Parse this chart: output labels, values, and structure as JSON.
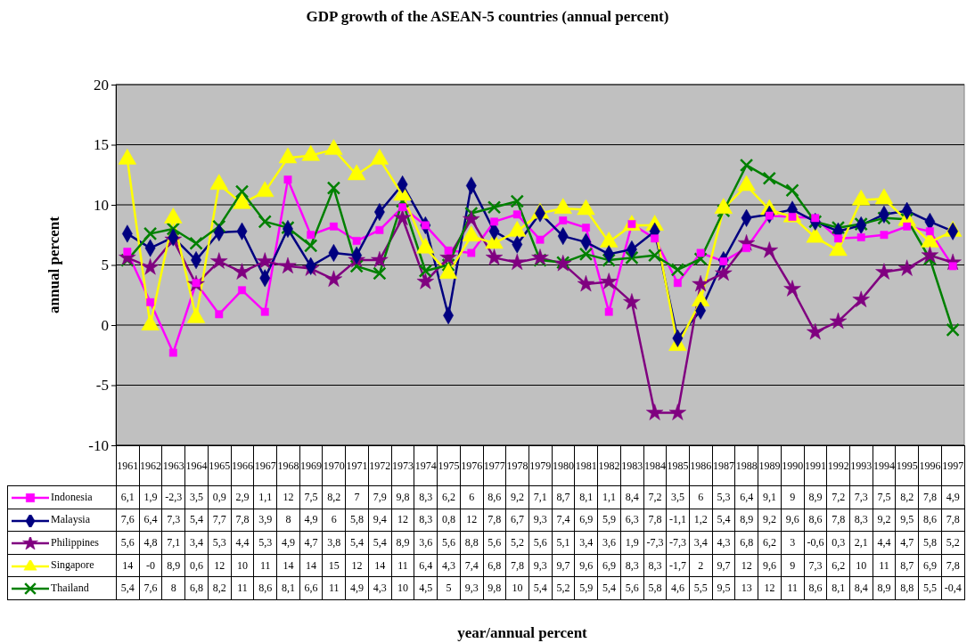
{
  "chart_data": {
    "type": "line",
    "title": "GDP growth of the ASEAN-5 countries (annual percent)",
    "annotations": [
      "year/annual percent"
    ],
    "ylabel": "annual percent",
    "categories": [
      "1961",
      "1962",
      "1963",
      "1964",
      "1965",
      "1966",
      "1967",
      "1968",
      "1969",
      "1970",
      "1971",
      "1972",
      "1973",
      "1974",
      "1975",
      "1976",
      "1977",
      "1978",
      "1979",
      "1980",
      "1981",
      "1982",
      "1983",
      "1984",
      "1985",
      "1986",
      "1987",
      "1988",
      "1989",
      "1990",
      "1991",
      "1992",
      "1993",
      "1994",
      "1995",
      "1996",
      "1997"
    ],
    "ylim": [
      -10,
      20
    ],
    "yticks": [
      -10,
      -5,
      0,
      5,
      10,
      15,
      20
    ],
    "grid": "y",
    "legend": "bottom left",
    "data_labels": false,
    "series": [
      {
        "name": "Indonesia",
        "color": "#ff00ff",
        "marker": "square",
        "values": [
          6.1,
          1.9,
          -2.3,
          3.5,
          0.9,
          2.9,
          1.1,
          12.1,
          7.5,
          8.2,
          7,
          7.9,
          9.8,
          8.3,
          6.2,
          6,
          8.6,
          9.2,
          7.1,
          8.7,
          8.1,
          1.1,
          8.4,
          7.2,
          3.5,
          6,
          5.3,
          6.4,
          9.1,
          9,
          8.9,
          7.2,
          7.3,
          7.5,
          8.2,
          7.8,
          4.9
        ],
        "value_labels": [
          "6,1",
          "1,9",
          "-2,3",
          "3,5",
          "0,9",
          "2,9",
          "1,1",
          "12",
          "7,5",
          "8,2",
          "7",
          "7,9",
          "9,8",
          "8,3",
          "6,2",
          "6",
          "8,6",
          "9,2",
          "7,1",
          "8,7",
          "8,1",
          "1,1",
          "8,4",
          "7,2",
          "3,5",
          "6",
          "5,3",
          "6,4",
          "9,1",
          "9",
          "8,9",
          "7,2",
          "7,3",
          "7,5",
          "8,2",
          "7,8",
          "4,9"
        ]
      },
      {
        "name": "Malaysia",
        "color": "#000080",
        "marker": "diamond",
        "values": [
          7.6,
          6.4,
          7.3,
          5.4,
          7.7,
          7.8,
          3.9,
          8,
          4.9,
          6,
          5.8,
          9.4,
          11.7,
          8.3,
          0.8,
          11.6,
          7.8,
          6.7,
          9.3,
          7.4,
          6.9,
          5.9,
          6.3,
          7.8,
          -1.1,
          1.2,
          5.4,
          8.9,
          9.2,
          9.6,
          8.6,
          7.8,
          8.3,
          9.2,
          9.5,
          8.6,
          7.8
        ],
        "value_labels": [
          "7,6",
          "6,4",
          "7,3",
          "5,4",
          "7,7",
          "7,8",
          "3,9",
          "8",
          "4,9",
          "6",
          "5,8",
          "9,4",
          "12",
          "8,3",
          "0,8",
          "12",
          "7,8",
          "6,7",
          "9,3",
          "7,4",
          "6,9",
          "5,9",
          "6,3",
          "7,8",
          "-1,1",
          "1,2",
          "5,4",
          "8,9",
          "9,2",
          "9,6",
          "8,6",
          "7,8",
          "8,3",
          "9,2",
          "9,5",
          "8,6",
          "7,8"
        ]
      },
      {
        "name": "Philippines",
        "color": "#800080",
        "marker": "star",
        "values": [
          5.6,
          4.8,
          7.1,
          3.4,
          5.3,
          4.4,
          5.3,
          4.9,
          4.7,
          3.8,
          5.4,
          5.4,
          8.9,
          3.6,
          5.6,
          8.8,
          5.6,
          5.2,
          5.6,
          5.1,
          3.4,
          3.6,
          1.9,
          -7.3,
          -7.3,
          3.4,
          4.3,
          6.8,
          6.2,
          3,
          -0.6,
          0.3,
          2.1,
          4.4,
          4.7,
          5.8,
          5.2
        ],
        "value_labels": [
          "5,6",
          "4,8",
          "7,1",
          "3,4",
          "5,3",
          "4,4",
          "5,3",
          "4,9",
          "4,7",
          "3,8",
          "5,4",
          "5,4",
          "8,9",
          "3,6",
          "5,6",
          "8,8",
          "5,6",
          "5,2",
          "5,6",
          "5,1",
          "3,4",
          "3,6",
          "1,9",
          "-7,3",
          "-7,3",
          "3,4",
          "4,3",
          "6,8",
          "6,2",
          "3",
          "-0,6",
          "0,3",
          "2,1",
          "4,4",
          "4,7",
          "5,8",
          "5,2"
        ]
      },
      {
        "name": "Singapore",
        "color": "#ffff00",
        "marker": "triangle",
        "values": [
          13.8,
          0,
          8.9,
          0.6,
          11.7,
          10.1,
          11.1,
          13.9,
          14.1,
          14.6,
          12.5,
          13.8,
          10.8,
          6.4,
          4.3,
          7.4,
          6.8,
          7.8,
          9.3,
          9.7,
          9.6,
          6.9,
          8.3,
          8.3,
          -1.7,
          2,
          9.7,
          11.6,
          9.6,
          9,
          7.3,
          6.2,
          10.4,
          10.5,
          8.7,
          6.9,
          7.8
        ],
        "value_labels": [
          "14",
          "-0",
          "8,9",
          "0,6",
          "12",
          "10",
          "11",
          "14",
          "14",
          "15",
          "12",
          "14",
          "11",
          "6,4",
          "4,3",
          "7,4",
          "6,8",
          "7,8",
          "9,3",
          "9,7",
          "9,6",
          "6,9",
          "8,3",
          "8,3",
          "-1,7",
          "2",
          "9,7",
          "12",
          "9,6",
          "9",
          "7,3",
          "6,2",
          "10",
          "11",
          "8,7",
          "6,9",
          "7,8"
        ]
      },
      {
        "name": "Thailand",
        "color": "#008000",
        "marker": "cross",
        "values": [
          5.4,
          7.6,
          8,
          6.8,
          8.2,
          11.1,
          8.6,
          8.1,
          6.6,
          11.4,
          4.9,
          4.3,
          10.3,
          4.5,
          5,
          9.3,
          9.8,
          10.3,
          5.4,
          5.2,
          5.9,
          5.4,
          5.6,
          5.8,
          4.6,
          5.5,
          9.5,
          13.3,
          12.2,
          11.2,
          8.6,
          8.1,
          8.4,
          8.9,
          8.8,
          5.5,
          -0.4
        ],
        "value_labels": [
          "5,4",
          "7,6",
          "8",
          "6,8",
          "8,2",
          "11",
          "8,6",
          "8,1",
          "6,6",
          "11",
          "4,9",
          "4,3",
          "10",
          "4,5",
          "5",
          "9,3",
          "9,8",
          "10",
          "5,4",
          "5,2",
          "5,9",
          "5,4",
          "5,6",
          "5,8",
          "4,6",
          "5,5",
          "9,5",
          "13",
          "12",
          "11",
          "8,6",
          "8,1",
          "8,4",
          "8,9",
          "8,8",
          "5,5",
          "-0,4"
        ]
      }
    ]
  }
}
